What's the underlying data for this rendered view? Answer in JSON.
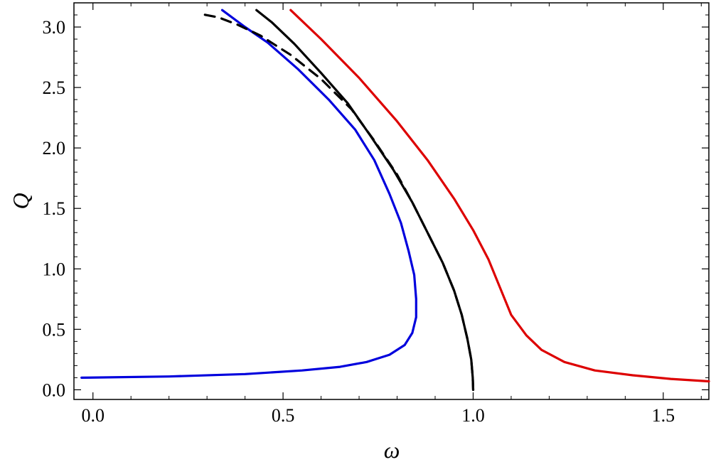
{
  "chart_data": {
    "type": "line",
    "title": "",
    "xlabel": "ω",
    "ylabel": "Q",
    "xlim": [
      -0.05,
      1.62
    ],
    "ylim": [
      -0.08,
      3.2
    ],
    "xticks": [
      0.0,
      0.5,
      1.0,
      1.5
    ],
    "xtick_labels": [
      "0.0",
      "0.5",
      "1.0",
      "1.5"
    ],
    "yticks": [
      0.0,
      0.5,
      1.0,
      1.5,
      2.0,
      2.5,
      3.0
    ],
    "ytick_labels": [
      "0.0",
      "0.5",
      "1.0",
      "1.5",
      "2.0",
      "2.5",
      "3.0"
    ],
    "grid": false,
    "legend": "none",
    "series": [
      {
        "color": "#0000dd",
        "style": "solid",
        "x": [
          -0.03,
          0.2,
          0.4,
          0.55,
          0.65,
          0.72,
          0.78,
          0.82,
          0.84,
          0.85,
          0.85,
          0.845,
          0.83,
          0.81,
          0.78,
          0.74,
          0.69,
          0.62,
          0.54,
          0.46,
          0.4,
          0.34
        ],
        "y": [
          0.1,
          0.11,
          0.13,
          0.16,
          0.19,
          0.23,
          0.29,
          0.37,
          0.47,
          0.6,
          0.75,
          0.95,
          1.15,
          1.38,
          1.62,
          1.9,
          2.15,
          2.4,
          2.65,
          2.87,
          3.0,
          3.14
        ]
      },
      {
        "color": "#000000",
        "style": "solid",
        "x": [
          1.0,
          0.999,
          0.995,
          0.985,
          0.97,
          0.95,
          0.92,
          0.88,
          0.84,
          0.79,
          0.73,
          0.67,
          0.6,
          0.53,
          0.47,
          0.43
        ],
        "y": [
          0.0,
          0.1,
          0.25,
          0.42,
          0.62,
          0.82,
          1.05,
          1.3,
          1.55,
          1.82,
          2.1,
          2.37,
          2.62,
          2.86,
          3.04,
          3.14
        ]
      },
      {
        "color": "#000000",
        "style": "dashed",
        "x": [
          1.0,
          0.999,
          0.995,
          0.985,
          0.97,
          0.95,
          0.92,
          0.88,
          0.84,
          0.8,
          0.74,
          0.68,
          0.6,
          0.52,
          0.44,
          0.38,
          0.33,
          0.28
        ],
        "y": [
          0.0,
          0.1,
          0.25,
          0.42,
          0.62,
          0.82,
          1.05,
          1.3,
          1.55,
          1.78,
          2.06,
          2.32,
          2.57,
          2.77,
          2.93,
          3.02,
          3.08,
          3.11
        ]
      },
      {
        "color": "#dd0000",
        "style": "solid",
        "x": [
          0.52,
          0.6,
          0.7,
          0.8,
          0.88,
          0.95,
          1.0,
          1.04,
          1.07,
          1.1,
          1.14,
          1.18,
          1.24,
          1.32,
          1.42,
          1.52,
          1.62
        ],
        "y": [
          3.14,
          2.9,
          2.58,
          2.22,
          1.9,
          1.58,
          1.32,
          1.08,
          0.85,
          0.62,
          0.45,
          0.33,
          0.23,
          0.16,
          0.12,
          0.09,
          0.07
        ]
      }
    ]
  }
}
